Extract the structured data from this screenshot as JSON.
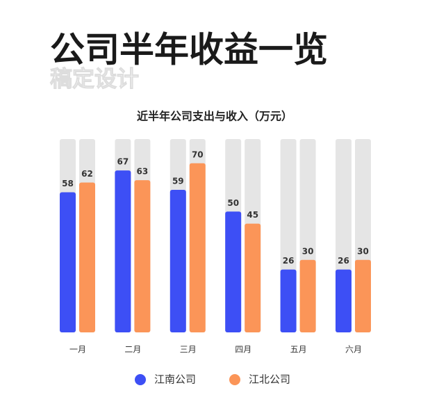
{
  "page_title": "公司半年收益一览",
  "watermark": "稿定设计",
  "chart_data": {
    "type": "bar",
    "title": "近半年公司支出与收入（万元）",
    "categories": [
      "一月",
      "二月",
      "三月",
      "四月",
      "五月",
      "六月"
    ],
    "series": [
      {
        "name": "江南公司",
        "color": "#3d4ff5",
        "values": [
          58,
          67,
          59,
          50,
          26,
          26
        ]
      },
      {
        "name": "江北公司",
        "color": "#fb9558",
        "values": [
          62,
          63,
          70,
          45,
          30,
          30
        ]
      }
    ],
    "ylim": [
      0,
      80
    ],
    "track_color": "#e5e5e5"
  }
}
